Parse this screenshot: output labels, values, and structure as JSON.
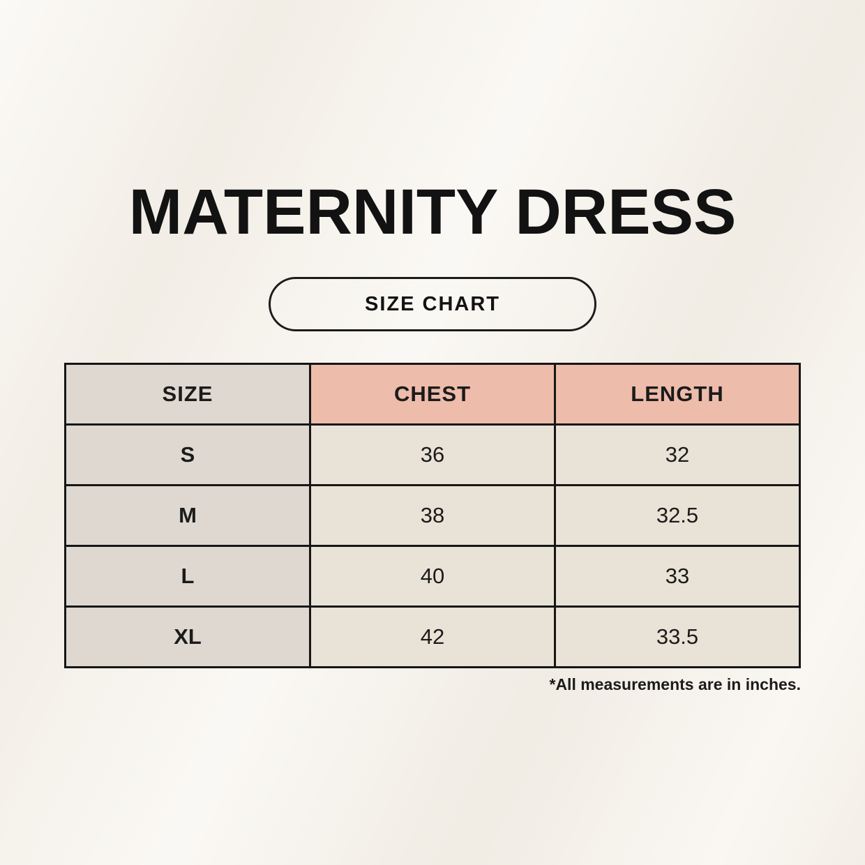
{
  "page": {
    "title": "MATERNITY DRESS",
    "badge_label": "SIZE CHART",
    "footnote": "*All measurements are in inches."
  },
  "chart_data": {
    "type": "table",
    "title": "MATERNITY DRESS — SIZE CHART",
    "columns": [
      "SIZE",
      "CHEST",
      "LENGTH"
    ],
    "rows": [
      [
        "S",
        "36",
        "32"
      ],
      [
        "M",
        "38",
        "32.5"
      ],
      [
        "L",
        "40",
        "33"
      ],
      [
        "XL",
        "42",
        "33.5"
      ]
    ],
    "units": "inches"
  },
  "colors": {
    "background": "#f7f3ec",
    "ink": "#1b1b1b",
    "size_column_bg": "#ded8d1",
    "header_pink_bg": "#edbcab",
    "data_cell_bg": "#e9e2d6"
  }
}
